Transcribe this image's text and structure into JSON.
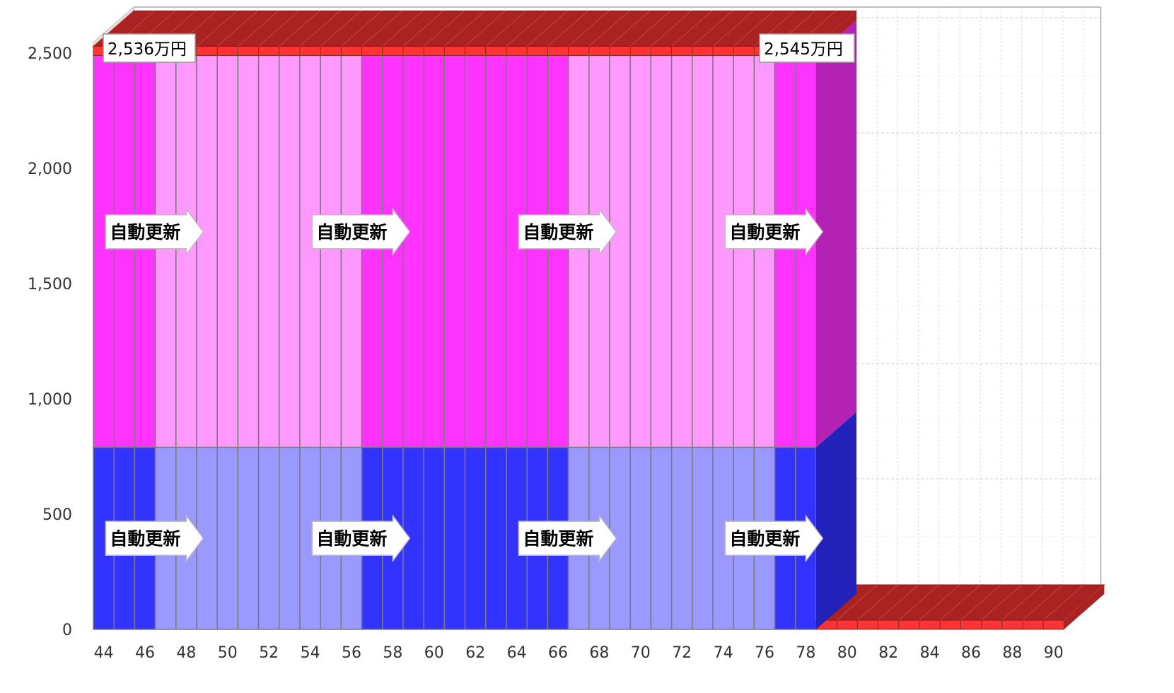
{
  "chart_data": {
    "type": "bar",
    "stacked": true,
    "three_d": true,
    "title": "",
    "xlabel": "",
    "ylabel": "",
    "categories": [
      44,
      45,
      46,
      47,
      48,
      49,
      50,
      51,
      52,
      53,
      54,
      55,
      56,
      57,
      58,
      59,
      60,
      61,
      62,
      63,
      64,
      65,
      66,
      67,
      68,
      69,
      70,
      71,
      72,
      73,
      74,
      75,
      76,
      77,
      78,
      79,
      80,
      81,
      82,
      83,
      84,
      85,
      86,
      87,
      88,
      89,
      90
    ],
    "x_tick_labels": [
      "44",
      "46",
      "48",
      "50",
      "52",
      "54",
      "56",
      "58",
      "60",
      "62",
      "64",
      "66",
      "68",
      "70",
      "72",
      "74",
      "76",
      "78",
      "80",
      "82",
      "84",
      "86",
      "88",
      "90"
    ],
    "y_tick_labels": [
      "0",
      "500",
      "1,000",
      "1,500",
      "2,000",
      "2,500"
    ],
    "ylim": [
      0,
      2700
    ],
    "grid": true,
    "series": [
      {
        "role": "lower",
        "colors": [
          "#3333ff",
          "#9999ff",
          "#2222bb"
        ],
        "values": [
          790,
          790,
          790,
          790,
          790,
          790,
          790,
          790,
          790,
          790,
          790,
          790,
          790,
          790,
          790,
          790,
          790,
          790,
          790,
          790,
          790,
          790,
          790,
          790,
          790,
          790,
          790,
          790,
          790,
          790,
          790,
          790,
          790,
          790,
          790,
          0,
          0,
          0,
          0,
          0,
          0,
          0,
          0,
          0,
          0,
          0,
          0
        ]
      },
      {
        "role": "upper",
        "colors": [
          "#ff33ff",
          "#ff99ff",
          "#b322b3"
        ],
        "values": [
          1700,
          1700,
          1700,
          1700,
          1700,
          1700,
          1700,
          1700,
          1700,
          1700,
          1700,
          1700,
          1700,
          1700,
          1700,
          1700,
          1700,
          1700,
          1700,
          1700,
          1700,
          1700,
          1700,
          1700,
          1700,
          1700,
          1700,
          1700,
          1700,
          1700,
          1700,
          1700,
          1700,
          1700,
          1700,
          0,
          0,
          0,
          0,
          0,
          0,
          0,
          0,
          0,
          0,
          0,
          0
        ]
      },
      {
        "role": "cap",
        "colors": [
          "#ff3333",
          "#ff3333",
          "#aa2222"
        ],
        "values": [
          40,
          40,
          40,
          40,
          40,
          40,
          40,
          40,
          40,
          40,
          40,
          40,
          40,
          40,
          40,
          40,
          40,
          40,
          40,
          40,
          40,
          40,
          40,
          40,
          40,
          40,
          40,
          40,
          40,
          40,
          40,
          40,
          40,
          40,
          40,
          40,
          40,
          40,
          40,
          40,
          40,
          40,
          40,
          40,
          40,
          40,
          40
        ]
      }
    ],
    "shade_pattern": [
      "dark",
      "dark",
      "dark",
      "light",
      "light",
      "light",
      "light",
      "light",
      "light",
      "light",
      "light",
      "light",
      "light",
      "dark",
      "dark",
      "dark",
      "dark",
      "dark",
      "dark",
      "dark",
      "dark",
      "dark",
      "dark",
      "light",
      "light",
      "light",
      "light",
      "light",
      "light",
      "light",
      "light",
      "light",
      "light",
      "dark",
      "dark",
      "none",
      "none",
      "none",
      "none",
      "none",
      "none",
      "none",
      "none",
      "none",
      "none",
      "none",
      "none"
    ],
    "annotations": [
      {
        "text": "2,536万円"
      },
      {
        "text": "2,545万円"
      }
    ],
    "segment_labels": [
      {
        "text": "自動更新",
        "category": 46,
        "series": "upper"
      },
      {
        "text": "自動更新",
        "category": 56,
        "series": "upper"
      },
      {
        "text": "自動更新",
        "category": 66,
        "series": "upper"
      },
      {
        "text": "自動更新",
        "category": 76,
        "series": "upper"
      },
      {
        "text": "自動更新",
        "category": 46,
        "series": "lower"
      },
      {
        "text": "自動更新",
        "category": 56,
        "series": "lower"
      },
      {
        "text": "自動更新",
        "category": 66,
        "series": "lower"
      },
      {
        "text": "自動更新",
        "category": 76,
        "series": "lower"
      }
    ]
  }
}
